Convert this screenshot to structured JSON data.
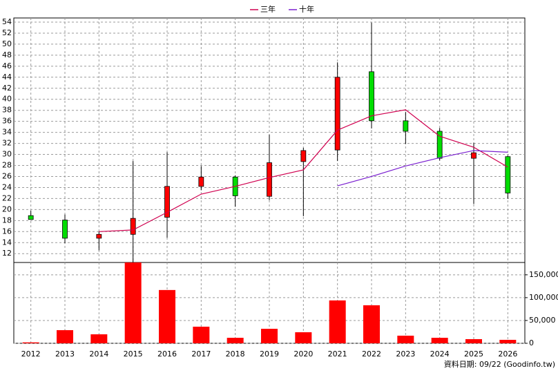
{
  "chart_data": [
    {
      "type": "candlestick",
      "open": [
        18.9,
        18.1,
        14.8,
        15.5,
        18.6,
        24.2,
        25.9,
        22.4,
        28.7,
        30.8,
        45.0,
        36.1,
        34.2,
        29.3,
        29.6
      ],
      "high": [
        19.8,
        19.1,
        16.0,
        28.8,
        30.4,
        27.9,
        26.2,
        33.6,
        31.2,
        46.7,
        53.9,
        37.7,
        34.8,
        32.1,
        29.8
      ],
      "low": [
        18.2,
        13.9,
        12.6,
        10.4,
        14.9,
        23.5,
        20.5,
        21.7,
        18.8,
        28.8,
        34.7,
        31.9,
        28.9,
        21.0,
        22.0
      ],
      "close": [
        18.2,
        14.8,
        15.5,
        18.4,
        24.2,
        25.9,
        22.5,
        28.5,
        30.7,
        44.0,
        36.1,
        34.2,
        29.3,
        30.3,
        23.0
      ],
      "up_color": "#ff0000",
      "down_color": "#00dd00",
      "series": [
        {
          "name": "三年",
          "color": "#d0004f",
          "values": [
            null,
            null,
            16.0,
            16.3,
            19.5,
            22.8,
            24.2,
            25.8,
            27.2,
            34.4,
            37.0,
            38.1,
            33.3,
            31.3,
            27.7
          ]
        },
        {
          "name": "十年",
          "color": "#7a1fd0",
          "values": [
            null,
            null,
            null,
            null,
            null,
            null,
            null,
            null,
            null,
            24.3,
            26.0,
            27.9,
            29.4,
            30.7,
            30.4
          ]
        }
      ],
      "ylim": [
        10.4,
        54.75
      ],
      "yticks": [
        12,
        14,
        16,
        18,
        20,
        22,
        24,
        26,
        28,
        30,
        32,
        34,
        36,
        38,
        40,
        42,
        44,
        46,
        48,
        50,
        52,
        54
      ],
      "grid": true
    },
    {
      "type": "bar",
      "categories": [
        "2012",
        "2013",
        "2014",
        "2015",
        "2016",
        "2017",
        "2018",
        "2019",
        "2020",
        "2021",
        "2022",
        "2023",
        "2024",
        "2025",
        "2026"
      ],
      "values": [
        2000,
        28800,
        19700,
        177000,
        116700,
        36400,
        12100,
        31800,
        24200,
        93900,
        83300,
        16700,
        12100,
        9100,
        7600
      ],
      "color": "#ff0000",
      "ylim": [
        0,
        177000
      ],
      "yticks": [
        0,
        {
          "value": 50000,
          "label": "50,000"
        },
        {
          "value": 100000,
          "label": "100,000"
        },
        {
          "value": 150000,
          "label": "150,000"
        }
      ],
      "grid": true,
      "note": "資料日期: 09/22 (Goodinfo.tw)"
    }
  ]
}
